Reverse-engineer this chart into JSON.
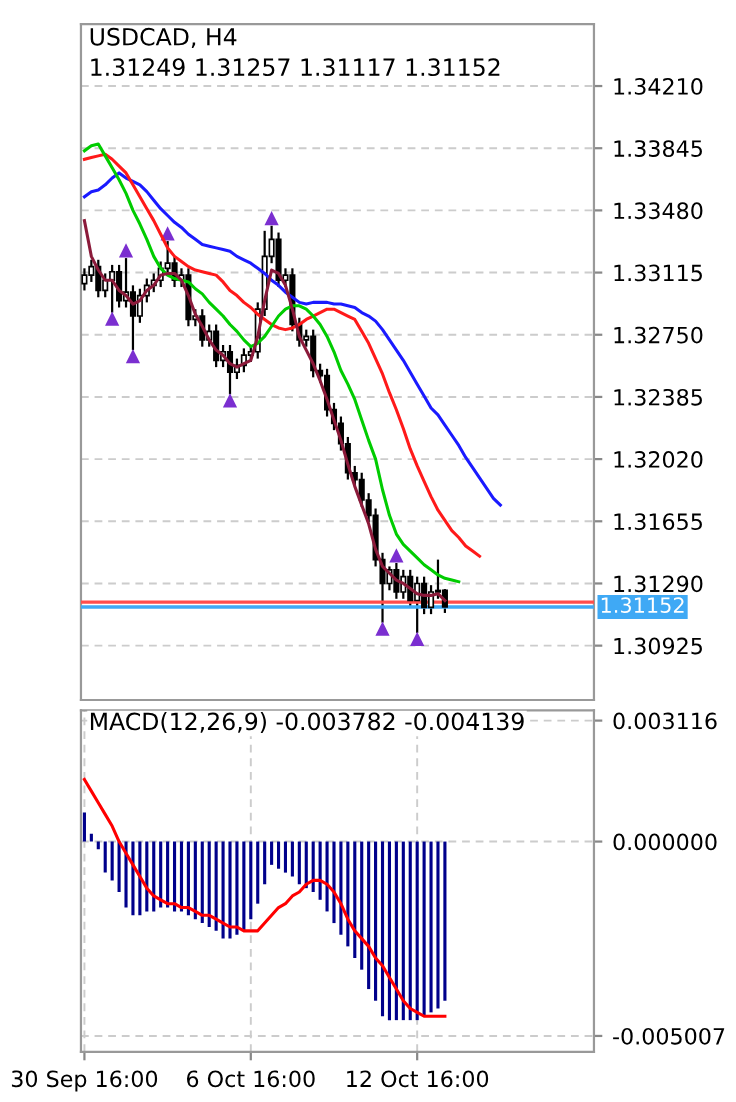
{
  "chart_data": [
    {
      "type": "candlestick",
      "title": "USDCAD, H4",
      "subtitle": "1.31249 1.31257 1.31117 1.31152",
      "categories": [
        null,
        null,
        null,
        null,
        null,
        null,
        null,
        null,
        null,
        null,
        null,
        null,
        null,
        null,
        null,
        null,
        null,
        null,
        null,
        null,
        null,
        null,
        null,
        null,
        null,
        null,
        null,
        null,
        null,
        null,
        null,
        null,
        null,
        null,
        null,
        null,
        null,
        null,
        null,
        null,
        null,
        null,
        null,
        null,
        null,
        null,
        null,
        null,
        null,
        null,
        null,
        null,
        null,
        null,
        null,
        null,
        null,
        null,
        null,
        null,
        null,
        null,
        null,
        null,
        null,
        null,
        null,
        null,
        null,
        null,
        null,
        null,
        null,
        null
      ],
      "ohlc": [
        [
          1.3305,
          1.3314,
          1.3301,
          1.331
        ],
        [
          1.331,
          1.3319,
          1.3306,
          1.3315
        ],
        [
          1.3315,
          1.3319,
          1.3297,
          1.3301
        ],
        [
          1.3301,
          1.3311,
          1.3297,
          1.3307
        ],
        [
          1.3307,
          1.3316,
          1.3288,
          1.3312
        ],
        [
          1.3312,
          1.3316,
          1.3291,
          1.3295
        ],
        [
          1.3295,
          1.332,
          1.3291,
          1.33
        ],
        [
          1.33,
          1.3304,
          1.3266,
          1.3286
        ],
        [
          1.3286,
          1.3302,
          1.3282,
          1.3298
        ],
        [
          1.3298,
          1.3308,
          1.3294,
          1.3304
        ],
        [
          1.3304,
          1.3311,
          1.33,
          1.3307
        ],
        [
          1.3307,
          1.3318,
          1.3303,
          1.3314
        ],
        [
          1.3314,
          1.333,
          1.331,
          1.3317
        ],
        [
          1.3317,
          1.3321,
          1.3303,
          1.3307
        ],
        [
          1.3307,
          1.3314,
          1.3303,
          1.331
        ],
        [
          1.331,
          1.3314,
          1.328,
          1.3284
        ],
        [
          1.3284,
          1.329,
          1.328,
          1.3286
        ],
        [
          1.3286,
          1.329,
          1.3268,
          1.3272
        ],
        [
          1.3272,
          1.3281,
          1.3268,
          1.3277
        ],
        [
          1.3277,
          1.3281,
          1.3256,
          1.326
        ],
        [
          1.326,
          1.3269,
          1.3256,
          1.3265
        ],
        [
          1.3265,
          1.3269,
          1.324,
          1.3253
        ],
        [
          1.3253,
          1.3261,
          1.3249,
          1.3257
        ],
        [
          1.3257,
          1.3267,
          1.3253,
          1.3263
        ],
        [
          1.3263,
          1.3269,
          1.3259,
          1.3265
        ],
        [
          1.3265,
          1.3294,
          1.3261,
          1.329
        ],
        [
          1.329,
          1.3336,
          1.3286,
          1.3321
        ],
        [
          1.3321,
          1.3339,
          1.3317,
          1.3331
        ],
        [
          1.3331,
          1.3335,
          1.3303,
          1.3307
        ],
        [
          1.3307,
          1.3314,
          1.3303,
          1.331
        ],
        [
          1.331,
          1.3314,
          1.3277,
          1.3281
        ],
        [
          1.3281,
          1.3285,
          1.3268,
          1.3272
        ],
        [
          1.3272,
          1.3278,
          1.3268,
          1.3274
        ],
        [
          1.3274,
          1.3278,
          1.325,
          1.3254
        ],
        [
          1.3254,
          1.3258,
          1.3247,
          1.3251
        ],
        [
          1.3251,
          1.3255,
          1.3227,
          1.3231
        ],
        [
          1.3231,
          1.3235,
          1.3219,
          1.3223
        ],
        [
          1.3223,
          1.3227,
          1.3207,
          1.3211
        ],
        [
          1.3211,
          1.3215,
          1.319,
          1.3194
        ],
        [
          1.3194,
          1.3198,
          1.3186,
          1.319
        ],
        [
          1.319,
          1.3194,
          1.3174,
          1.3178
        ],
        [
          1.3178,
          1.3182,
          1.3165,
          1.3169
        ],
        [
          1.3169,
          1.3173,
          1.3139,
          1.3143
        ],
        [
          1.3143,
          1.3147,
          1.3106,
          1.3129
        ],
        [
          1.3129,
          1.3139,
          1.3125,
          1.3137
        ],
        [
          1.3137,
          1.3141,
          1.312,
          1.3124
        ],
        [
          1.3124,
          1.3137,
          1.312,
          1.3133
        ],
        [
          1.3133,
          1.3137,
          1.3115,
          1.3119
        ],
        [
          1.3119,
          1.3133,
          1.31,
          1.3129
        ],
        [
          1.3129,
          1.3133,
          1.3111,
          1.3115
        ],
        [
          1.3115,
          1.3128,
          1.3111,
          1.3124
        ],
        [
          1.3124,
          1.3143,
          1.312,
          1.31249
        ],
        [
          1.31249,
          1.31257,
          1.31117,
          1.31152
        ],
        null,
        null,
        null,
        null,
        null,
        null,
        null,
        null,
        null,
        null,
        null,
        null,
        null,
        null,
        null,
        null,
        null,
        null,
        null,
        null,
        null
      ],
      "series": [
        {
          "type": "line",
          "color": "#1a1aff",
          "values": [
            1.3356,
            1.3359,
            1.336,
            1.3363,
            1.3367,
            1.337,
            1.3367,
            1.3365,
            1.3363,
            1.3359,
            1.3354,
            1.3349,
            1.3345,
            1.3341,
            1.3338,
            1.3334,
            1.3331,
            1.3328,
            1.3327,
            1.3326,
            1.3325,
            1.3324,
            1.3321,
            1.3319,
            1.3317,
            1.3314,
            1.3311,
            1.3307,
            1.3304,
            1.33,
            1.3297,
            1.3294,
            1.3293,
            1.3294,
            1.3294,
            1.3294,
            1.3293,
            1.3293,
            1.3292,
            1.3291,
            1.3288,
            1.3286,
            1.3283,
            1.3278,
            1.3272,
            1.3266,
            1.326,
            1.3253,
            1.3246,
            1.3239,
            1.3232,
            1.3228,
            1.3222,
            1.3216,
            1.321,
            1.3203,
            1.3197,
            1.3191,
            1.3185,
            1.3179,
            1.3175,
            null,
            null,
            null,
            null,
            null,
            null,
            null,
            null,
            null,
            null,
            null,
            null,
            null
          ]
        },
        {
          "type": "line",
          "color": "#ff1a1a",
          "values": [
            1.3378,
            1.3379,
            1.338,
            1.3381,
            1.3378,
            1.3374,
            1.337,
            1.3363,
            1.3356,
            1.3349,
            1.3342,
            1.3334,
            1.3326,
            1.3321,
            1.3318,
            1.3315,
            1.3313,
            1.3312,
            1.3311,
            1.331,
            1.3306,
            1.3301,
            1.3298,
            1.3294,
            1.3291,
            1.3287,
            1.3284,
            1.3281,
            1.3279,
            1.3278,
            1.3279,
            1.3281,
            1.3284,
            1.3286,
            1.3288,
            1.329,
            1.329,
            1.3288,
            1.3286,
            1.3284,
            1.3277,
            1.327,
            1.3261,
            1.3252,
            1.3241,
            1.3231,
            1.322,
            1.3208,
            1.3198,
            1.3189,
            1.318,
            1.3172,
            1.3166,
            1.316,
            1.3156,
            1.3151,
            1.3148,
            1.3145,
            null,
            null,
            null,
            null,
            null,
            null,
            null,
            null,
            null,
            null,
            null,
            null,
            null,
            null,
            null,
            null
          ]
        },
        {
          "type": "line",
          "color": "#00cc00",
          "values": [
            1.3383,
            1.3386,
            1.3387,
            1.338,
            1.3373,
            1.3366,
            1.3358,
            1.3348,
            1.334,
            1.3331,
            1.3321,
            1.3314,
            1.331,
            1.3308,
            1.3307,
            1.3306,
            1.3302,
            1.3299,
            1.3294,
            1.329,
            1.3286,
            1.3281,
            1.3277,
            1.3272,
            1.3268,
            1.327,
            1.3274,
            1.328,
            1.3286,
            1.329,
            1.3292,
            1.3292,
            1.329,
            1.3286,
            1.3281,
            1.3274,
            1.3265,
            1.3254,
            1.3246,
            1.3237,
            1.3225,
            1.3213,
            1.3202,
            1.3184,
            1.3169,
            1.3158,
            1.3152,
            1.3148,
            1.3144,
            1.314,
            1.3137,
            1.3134,
            1.3132,
            1.3131,
            1.313,
            null,
            null,
            null,
            null,
            null,
            null,
            null,
            null,
            null,
            null,
            null,
            null,
            null,
            null,
            null,
            null,
            null,
            null,
            null
          ]
        },
        {
          "type": "line",
          "color": "#8b1a3a",
          "values": [
            1.3342,
            1.3321,
            1.3313,
            1.3307,
            1.3307,
            1.3301,
            1.3298,
            1.3293,
            1.3295,
            1.3301,
            1.3304,
            1.331,
            1.3311,
            1.3311,
            1.3307,
            1.3298,
            1.3287,
            1.328,
            1.3272,
            1.3266,
            1.3263,
            1.3258,
            1.3256,
            1.3258,
            1.326,
            1.3274,
            1.3295,
            1.3313,
            1.3311,
            1.3304,
            1.329,
            1.3274,
            1.3266,
            1.3258,
            1.3248,
            1.3237,
            1.3225,
            1.3213,
            1.3199,
            1.3186,
            1.3175,
            1.3164,
            1.3149,
            1.3139,
            1.3135,
            1.3131,
            1.3129,
            1.3126,
            1.3123,
            1.3122,
            1.3122,
            1.3123,
            1.3119,
            null,
            null,
            null,
            null,
            null,
            null,
            null,
            null,
            null,
            null,
            null,
            null,
            null,
            null,
            null,
            null,
            null,
            null,
            null,
            null,
            null
          ]
        },
        {
          "type": "scatter",
          "marker": "triangle",
          "color": "#7b2fd0",
          "values": [
            null,
            null,
            null,
            null,
            null,
            null,
            1.3324,
            null,
            null,
            null,
            null,
            null,
            1.3334,
            null,
            null,
            null,
            null,
            null,
            null,
            null,
            null,
            null,
            null,
            null,
            null,
            null,
            null,
            1.3343,
            null,
            null,
            null,
            null,
            null,
            null,
            null,
            null,
            null,
            null,
            null,
            null,
            null,
            null,
            null,
            null,
            null,
            1.3145,
            null,
            null,
            null,
            null,
            null,
            null,
            null,
            null,
            null,
            null,
            null,
            null,
            null,
            null,
            null,
            null,
            null,
            null,
            null,
            null,
            null,
            null,
            null,
            null,
            null,
            null,
            null,
            null
          ]
        },
        {
          "type": "scatter",
          "marker": "triangle",
          "color": "#7b2fd0",
          "values": [
            null,
            null,
            null,
            null,
            1.3284,
            null,
            null,
            1.3262,
            null,
            null,
            null,
            null,
            null,
            null,
            null,
            null,
            null,
            null,
            null,
            null,
            null,
            1.3236,
            null,
            null,
            null,
            null,
            null,
            null,
            null,
            null,
            null,
            null,
            null,
            null,
            null,
            null,
            null,
            null,
            null,
            null,
            null,
            null,
            null,
            1.3102,
            null,
            null,
            null,
            null,
            1.3096,
            null,
            null,
            null,
            null,
            null,
            null,
            null,
            null,
            null,
            null,
            null,
            null,
            null,
            null,
            null,
            null,
            null,
            null,
            null,
            null,
            null,
            null,
            null,
            null,
            null
          ]
        }
      ],
      "ylim": [
        1.30606,
        1.34574
      ],
      "yticks": [
        {
          "value": 1.3421,
          "label": "1.34210"
        },
        {
          "value": 1.33845,
          "label": "1.33845"
        },
        {
          "value": 1.3348,
          "label": "1.33480"
        },
        {
          "value": 1.33115,
          "label": "1.33115"
        },
        {
          "value": 1.3275,
          "label": "1.32750"
        },
        {
          "value": 1.32385,
          "label": "1.32385"
        },
        {
          "value": 1.3202,
          "label": "1.32020"
        },
        {
          "value": 1.31655,
          "label": "1.31655"
        },
        {
          "value": 1.3129,
          "label": "1.31290"
        },
        {
          "value": 1.30925,
          "label": "1.30925"
        }
      ],
      "ref_lines": [
        {
          "axis": "y",
          "value": 1.3118,
          "color": "#ff4d4d"
        },
        {
          "axis": "y",
          "value": 1.31152,
          "label": "1.31152",
          "color": "#3fa9f5"
        }
      ],
      "grid": true,
      "tick_labels": "y"
    },
    {
      "type": "bar",
      "title": "MACD(12,26,9) -0.003782 -0.004139",
      "categories": [
        "30 Sep 16:00",
        null,
        null,
        null,
        null,
        null,
        null,
        null,
        null,
        null,
        null,
        null,
        null,
        null,
        null,
        null,
        null,
        null,
        null,
        null,
        null,
        null,
        null,
        null,
        "6 Oct 16:00",
        null,
        null,
        null,
        null,
        null,
        null,
        null,
        null,
        null,
        null,
        null,
        null,
        null,
        null,
        null,
        null,
        null,
        null,
        null,
        null,
        null,
        null,
        null,
        "12 Oct 16:00",
        null,
        null,
        null,
        null,
        null,
        null,
        null,
        null,
        null,
        null,
        null,
        null,
        null,
        null,
        null,
        null,
        null,
        null,
        null,
        null,
        null,
        null,
        null,
        null,
        null
      ],
      "series": [
        {
          "type": "bar",
          "color": "#00008b",
          "values": [
            0.00075,
            0.0002,
            -0.0002,
            -0.0008,
            -0.001,
            -0.0013,
            -0.0017,
            -0.0019,
            -0.0019,
            -0.0018,
            -0.0018,
            -0.0017,
            -0.0017,
            -0.0018,
            -0.0018,
            -0.0019,
            -0.002,
            -0.0021,
            -0.0022,
            -0.0023,
            -0.0025,
            -0.0025,
            -0.0024,
            -0.0023,
            -0.002,
            -0.0016,
            -0.0011,
            -0.0006,
            -0.0007,
            -0.0008,
            -0.0009,
            -0.0011,
            -0.0012,
            -0.0013,
            -0.0015,
            -0.0018,
            -0.0021,
            -0.0024,
            -0.0027,
            -0.003,
            -0.0033,
            -0.0038,
            -0.0041,
            -0.0045,
            -0.0046,
            -0.0046,
            -0.0046,
            -0.0046,
            -0.0046,
            -0.0045,
            -0.0044,
            -0.0043,
            -0.0041,
            null,
            null,
            null,
            null,
            null,
            null,
            null,
            null,
            null,
            null,
            null,
            null,
            null,
            null,
            null,
            null,
            null,
            null,
            null,
            null,
            null
          ]
        },
        {
          "type": "line",
          "color": "#ff0000",
          "values": [
            0.0016,
            0.0013,
            0.001,
            0.0007,
            0.0004,
            0.0,
            -0.0003,
            -0.0006,
            -0.0009,
            -0.0012,
            -0.0014,
            -0.0015,
            -0.0016,
            -0.0016,
            -0.0017,
            -0.0017,
            -0.0018,
            -0.0019,
            -0.0019,
            -0.002,
            -0.0021,
            -0.0022,
            -0.0022,
            -0.0023,
            -0.0023,
            -0.0023,
            -0.0021,
            -0.0019,
            -0.0017,
            -0.0016,
            -0.0014,
            -0.0013,
            -0.0011,
            -0.001,
            -0.001,
            -0.0011,
            -0.0013,
            -0.0016,
            -0.002,
            -0.0023,
            -0.0025,
            -0.0027,
            -0.003,
            -0.0032,
            -0.0035,
            -0.0038,
            -0.0041,
            -0.0043,
            -0.0044,
            -0.0045,
            -0.0045,
            -0.0045,
            -0.0045,
            null,
            null,
            null,
            null,
            null,
            null,
            null,
            null,
            null,
            null,
            null,
            null,
            null,
            null,
            null,
            null,
            null,
            null,
            null,
            null,
            null
          ]
        }
      ],
      "ylim": [
        -0.00542,
        0.00338
      ],
      "yticks": [
        0.003116,
        {
          "value": 0.0,
          "label": "0.000000"
        },
        {
          "value": -0.005007,
          "label": "-0.005007"
        }
      ],
      "grid": true
    }
  ]
}
